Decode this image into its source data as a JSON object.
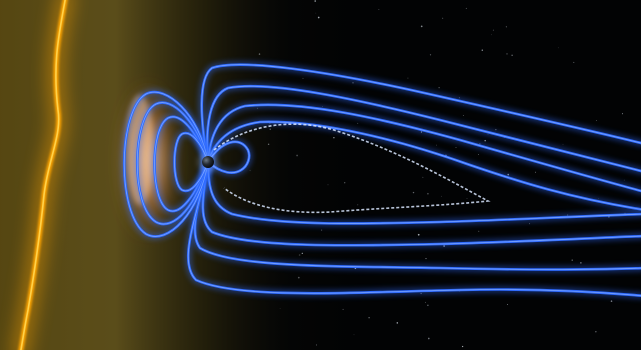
{
  "scene": {
    "subject": "earth-magnetosphere-visualization",
    "colors": {
      "space": "#020304",
      "solar_wind_haze": "#6b5a1c",
      "bow_shock": "#ffa500",
      "bow_shock_core": "#ffd24a",
      "magnetopause_glow": "#e8a070",
      "field_line": "#2f6bff",
      "field_line_core": "#8fb4ff",
      "neutral_sheet": "#d8e6ff",
      "planet": "#1a1f26"
    },
    "star_count": 90
  }
}
